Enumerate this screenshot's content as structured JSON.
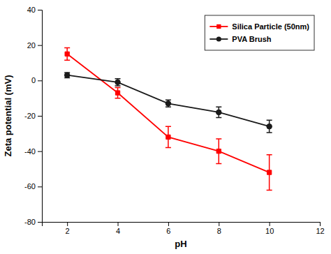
{
  "chart_data": {
    "type": "line",
    "x": [
      2,
      4,
      6,
      8,
      10
    ],
    "series": [
      {
        "name": "Silica Particle (50nm)",
        "color": "#ff0000",
        "marker": "square",
        "values": [
          15,
          -7,
          -32,
          -40,
          -52
        ],
        "errors": [
          3.5,
          3,
          6,
          7,
          10
        ]
      },
      {
        "name": "PVA Brush",
        "color": "#1a1a1a",
        "marker": "circle",
        "values": [
          3,
          -1,
          -13,
          -18,
          -26
        ],
        "errors": [
          1.5,
          2,
          2,
          3,
          3.5
        ]
      }
    ],
    "x_label": "pH",
    "y_label": "Zeta potential (mV)",
    "xlim": [
      1,
      12
    ],
    "ylim": [
      -80,
      40
    ],
    "xticks": [
      2,
      4,
      6,
      8,
      10,
      12
    ],
    "yticks": [
      -80,
      -60,
      -40,
      -20,
      0,
      20,
      40
    ],
    "legend": "upper right",
    "grid": false
  }
}
